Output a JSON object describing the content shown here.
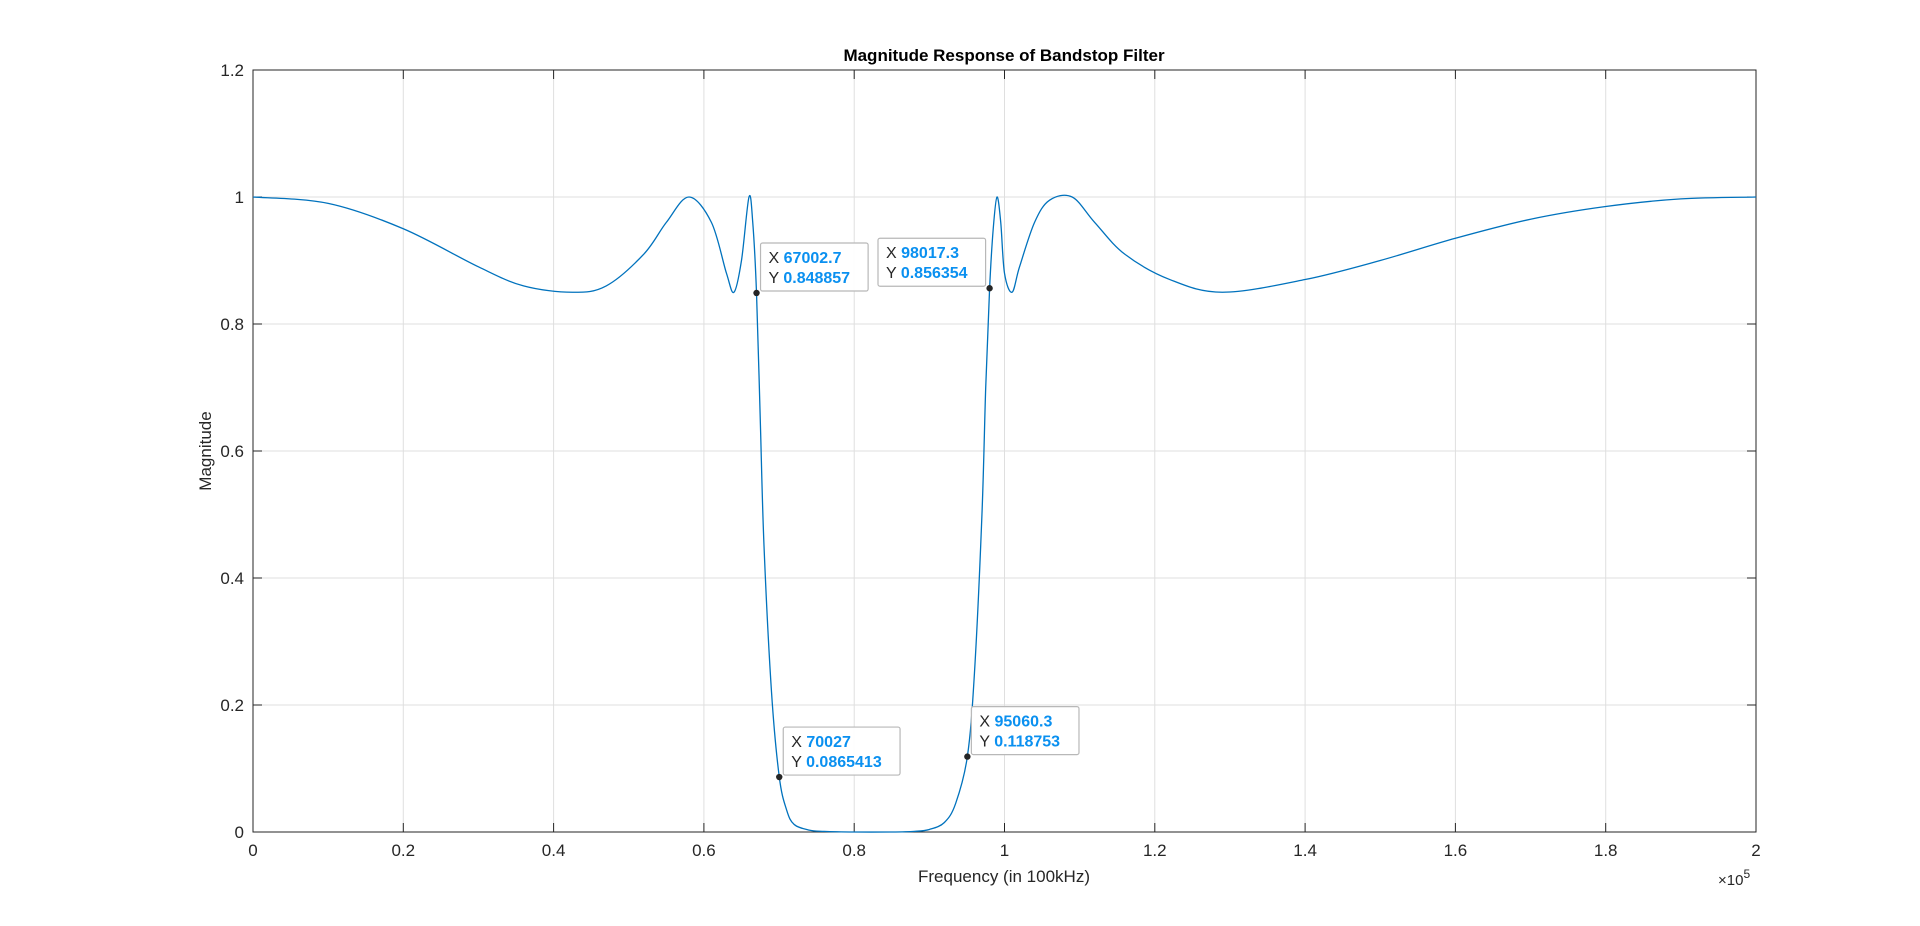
{
  "chart_data": {
    "type": "line",
    "title": "Magnitude Response of Bandstop Filter",
    "xlabel": "Frequency (in 100kHz)",
    "ylabel": "Magnitude",
    "xlim": [
      0,
      200000
    ],
    "ylim": [
      0,
      1.2
    ],
    "x_exponent_label": "×10",
    "x_exponent_power": "5",
    "x_tick_labels": [
      "0",
      "0.2",
      "0.4",
      "0.6",
      "0.8",
      "1",
      "1.2",
      "1.4",
      "1.6",
      "1.8",
      "2"
    ],
    "y_tick_labels": [
      "0",
      "0.2",
      "0.4",
      "0.6",
      "0.8",
      "1",
      "1.2"
    ],
    "grid": true,
    "line_color": "#0072bd",
    "series": [
      {
        "x": [
          0,
          10000,
          20000,
          30000,
          36000,
          42500,
          47000,
          52000,
          55000,
          58000,
          61000,
          63000,
          64000,
          65000,
          66000,
          66500,
          67000,
          67500,
          68000,
          69000,
          70027,
          71000,
          72000,
          74000,
          76000,
          80000,
          85000,
          88000,
          90000,
          92000,
          93500,
          95060,
          96000,
          97000,
          97500,
          98017,
          98500,
          99000,
          99500,
          100000,
          101000,
          102000,
          104000,
          106000,
          109000,
          112000,
          116000,
          122000,
          129000,
          140000,
          150000,
          160000,
          170000,
          180000,
          190000,
          200000
        ],
        "y": [
          1.0,
          0.99,
          0.95,
          0.89,
          0.86,
          0.85,
          0.86,
          0.91,
          0.96,
          1.0,
          0.96,
          0.88,
          0.85,
          0.9,
          1.0,
          0.96,
          0.849,
          0.65,
          0.45,
          0.22,
          0.087,
          0.035,
          0.012,
          0.003,
          0.001,
          0.0,
          0.0,
          0.001,
          0.004,
          0.015,
          0.045,
          0.119,
          0.25,
          0.5,
          0.7,
          0.856,
          0.95,
          1.0,
          0.96,
          0.88,
          0.85,
          0.89,
          0.96,
          0.995,
          1.0,
          0.96,
          0.91,
          0.87,
          0.85,
          0.87,
          0.9,
          0.935,
          0.965,
          0.985,
          0.997,
          1.0
        ]
      }
    ],
    "datatips": [
      {
        "x": 67002.7,
        "y": 0.848857,
        "x_text": "67002.7",
        "y_text": "0.848857",
        "side": "right"
      },
      {
        "x": 98017.3,
        "y": 0.856354,
        "x_text": "98017.3",
        "y_text": "0.856354",
        "side": "left"
      },
      {
        "x": 70027,
        "y": 0.0865413,
        "x_text": "70027",
        "y_text": "0.0865413",
        "side": "right"
      },
      {
        "x": 95060.3,
        "y": 0.118753,
        "x_text": "95060.3",
        "y_text": "0.118753",
        "side": "right"
      }
    ],
    "datatip_x_key": "X",
    "datatip_y_key": "Y"
  }
}
